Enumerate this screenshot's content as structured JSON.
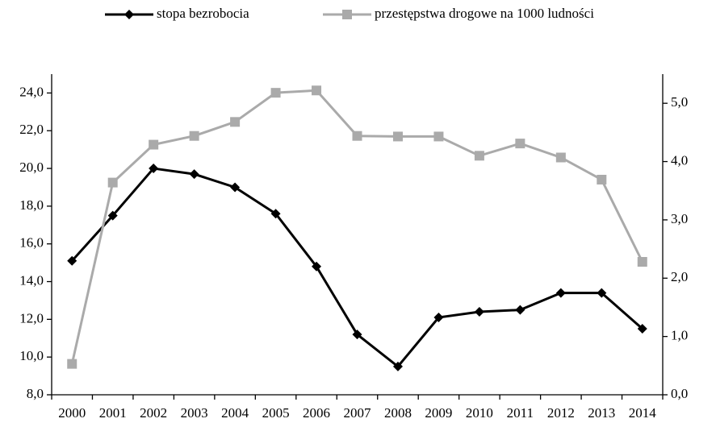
{
  "chart_data": {
    "type": "line",
    "categories": [
      "2000",
      "2001",
      "2002",
      "2003",
      "2004",
      "2005",
      "2006",
      "2007",
      "2008",
      "2009",
      "2010",
      "2011",
      "2012",
      "2013",
      "2014"
    ],
    "series": [
      {
        "name": "stopa bezrobocia",
        "color": "#000000",
        "marker": "diamond",
        "values": [
          15.1,
          17.5,
          20.0,
          19.7,
          19.0,
          17.6,
          14.8,
          11.2,
          9.5,
          12.1,
          12.4,
          12.5,
          13.4,
          13.4,
          11.5
        ]
      },
      {
        "name": "przestępstwa drogowe na 1000 ludności",
        "color": "#aaaaaa",
        "marker": "square",
        "axis": "y2",
        "values": [
          0.53,
          3.64,
          4.29,
          4.44,
          4.68,
          5.18,
          5.22,
          4.44,
          4.43,
          4.43,
          4.1,
          4.31,
          4.07,
          3.69,
          2.28
        ]
      }
    ],
    "ylim": [
      8,
      25
    ],
    "yticks": [
      {
        "value": 8,
        "label": "8,0"
      },
      {
        "value": 10,
        "label": "10,0"
      },
      {
        "value": 12,
        "label": "12,0"
      },
      {
        "value": 14,
        "label": "14,0"
      },
      {
        "value": 16,
        "label": "16,0"
      },
      {
        "value": 18,
        "label": "18,0"
      },
      {
        "value": 20,
        "label": "20,0"
      },
      {
        "value": 22,
        "label": "22,0"
      },
      {
        "value": 24,
        "label": "24,0"
      }
    ],
    "y2lim": [
      0,
      5.5
    ],
    "y2ticks": [
      {
        "value": 0,
        "label": "0,0"
      },
      {
        "value": 1,
        "label": "1,0"
      },
      {
        "value": 2,
        "label": "2,0"
      },
      {
        "value": 3,
        "label": "3,0"
      },
      {
        "value": 4,
        "label": "4,0"
      },
      {
        "value": 5,
        "label": "5,0"
      }
    ],
    "legend": "top"
  }
}
